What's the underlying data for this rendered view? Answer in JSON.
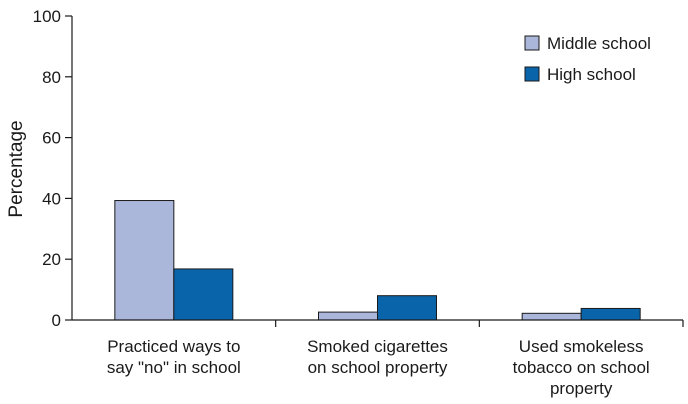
{
  "chart_data": {
    "type": "bar",
    "categories": [
      [
        "Practiced ways to",
        "say \"no\" in school"
      ],
      [
        "Smoked cigarettes",
        "on school property"
      ],
      [
        "Used smokeless",
        "tobacco on school",
        "property"
      ]
    ],
    "series": [
      {
        "name": "Middle school",
        "color": "#aab7da",
        "values": [
          39.3,
          2.6,
          2.2
        ]
      },
      {
        "name": "High school",
        "color": "#0a64aa",
        "values": [
          16.8,
          8.0,
          3.8
        ]
      }
    ],
    "ylabel": "Percentage",
    "xlabel": "",
    "ylim": [
      0,
      100
    ],
    "yticks": [
      0,
      20,
      40,
      60,
      80,
      100
    ],
    "grid": false,
    "legend_position": "top-right"
  }
}
